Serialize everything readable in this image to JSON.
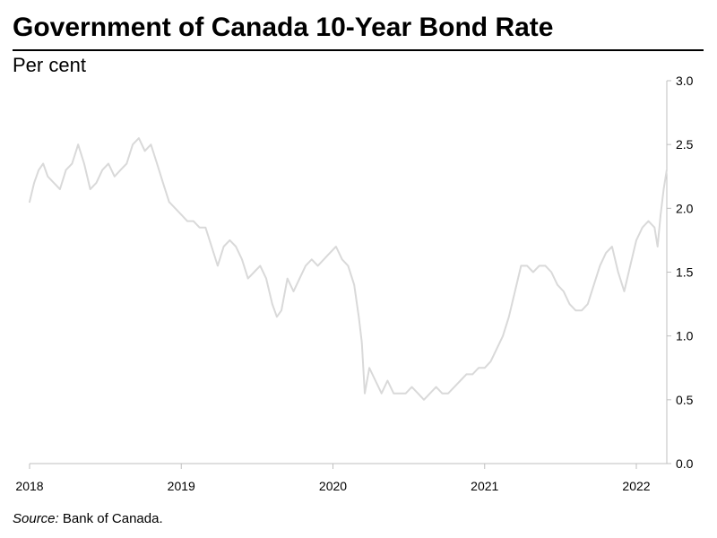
{
  "title": "Government of Canada 10-Year Bond Rate",
  "subtitle": "Per cent",
  "source": {
    "label": "Source:",
    "text": "Bank of Canada."
  },
  "chart_data": {
    "type": "line",
    "title": "Government of Canada 10-Year Bond Rate",
    "ylabel": "Per cent",
    "xlabel": "",
    "ylim": [
      0.0,
      3.0
    ],
    "xlim": [
      2018.0,
      2022.25
    ],
    "y_ticks": [
      "0.0",
      "0.5",
      "1.0",
      "1.5",
      "2.0",
      "2.5",
      "3.0"
    ],
    "x_ticks": [
      "2018",
      "2019",
      "2020",
      "2021",
      "2022"
    ],
    "y_axis_position": "right",
    "grid": false,
    "line_color": "#d9d9d9",
    "series": [
      {
        "x": [
          2018.0,
          2018.03,
          2018.06,
          2018.09,
          2018.12,
          2018.16,
          2018.2,
          2018.24,
          2018.28,
          2018.32,
          2018.36,
          2018.4,
          2018.44,
          2018.48,
          2018.52,
          2018.56,
          2018.6,
          2018.64,
          2018.68,
          2018.72,
          2018.76,
          2018.8,
          2018.84,
          2018.88,
          2018.92,
          2018.96,
          2019.0,
          2019.04,
          2019.08,
          2019.12,
          2019.16,
          2019.2,
          2019.24,
          2019.28,
          2019.32,
          2019.36,
          2019.4,
          2019.44,
          2019.48,
          2019.52,
          2019.56,
          2019.6,
          2019.63,
          2019.66,
          2019.7,
          2019.74,
          2019.78,
          2019.82,
          2019.86,
          2019.9,
          2019.94,
          2019.98,
          2020.02,
          2020.06,
          2020.1,
          2020.14,
          2020.17,
          2020.19,
          2020.21,
          2020.24,
          2020.28,
          2020.32,
          2020.36,
          2020.4,
          2020.44,
          2020.48,
          2020.52,
          2020.56,
          2020.6,
          2020.64,
          2020.68,
          2020.72,
          2020.76,
          2020.8,
          2020.84,
          2020.88,
          2020.92,
          2020.96,
          2021.0,
          2021.04,
          2021.08,
          2021.12,
          2021.16,
          2021.2,
          2021.24,
          2021.28,
          2021.32,
          2021.36,
          2021.4,
          2021.44,
          2021.48,
          2021.52,
          2021.56,
          2021.6,
          2021.64,
          2021.68,
          2021.72,
          2021.76,
          2021.8,
          2021.84,
          2021.88,
          2021.92,
          2021.96,
          2022.0,
          2022.04,
          2022.08,
          2022.12,
          2022.14,
          2022.16,
          2022.18,
          2022.2
        ],
        "values": [
          2.05,
          2.2,
          2.3,
          2.35,
          2.25,
          2.2,
          2.15,
          2.3,
          2.35,
          2.5,
          2.35,
          2.15,
          2.2,
          2.3,
          2.35,
          2.25,
          2.3,
          2.35,
          2.5,
          2.55,
          2.45,
          2.5,
          2.35,
          2.2,
          2.05,
          2.0,
          1.95,
          1.9,
          1.9,
          1.85,
          1.85,
          1.7,
          1.55,
          1.7,
          1.75,
          1.7,
          1.6,
          1.45,
          1.5,
          1.55,
          1.45,
          1.25,
          1.15,
          1.2,
          1.45,
          1.35,
          1.45,
          1.55,
          1.6,
          1.55,
          1.6,
          1.65,
          1.7,
          1.6,
          1.55,
          1.4,
          1.15,
          0.95,
          0.55,
          0.75,
          0.65,
          0.55,
          0.65,
          0.55,
          0.55,
          0.55,
          0.6,
          0.55,
          0.5,
          0.55,
          0.6,
          0.55,
          0.55,
          0.6,
          0.65,
          0.7,
          0.7,
          0.75,
          0.75,
          0.8,
          0.9,
          1.0,
          1.15,
          1.35,
          1.55,
          1.55,
          1.5,
          1.55,
          1.55,
          1.5,
          1.4,
          1.35,
          1.25,
          1.2,
          1.2,
          1.25,
          1.4,
          1.55,
          1.65,
          1.7,
          1.5,
          1.35,
          1.55,
          1.75,
          1.85,
          1.9,
          1.85,
          1.7,
          1.95,
          2.15,
          2.3
        ]
      }
    ]
  }
}
